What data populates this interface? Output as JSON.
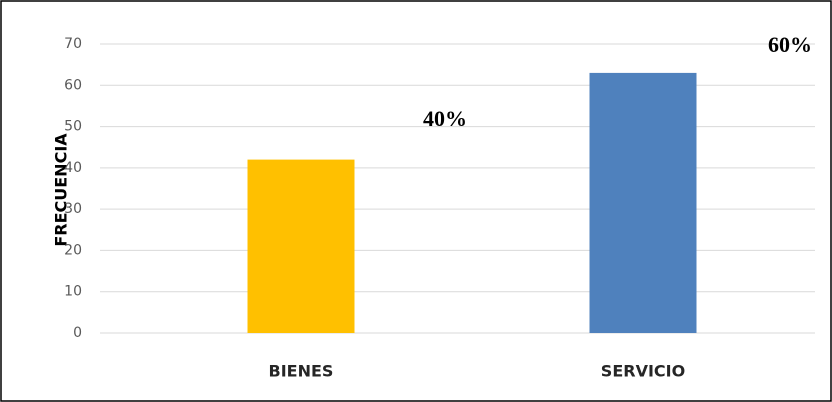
{
  "chart_data": {
    "type": "bar",
    "y_label": "FRECUENCIA",
    "categories": [
      "BIENES",
      "SERVICIO"
    ],
    "values": [
      42,
      63
    ],
    "colors": [
      "#ffc000",
      "#4f81bd"
    ],
    "ylim": [
      0,
      70
    ],
    "yticks": [
      0,
      10,
      20,
      30,
      40,
      50,
      60,
      70
    ],
    "grid": true,
    "annotations": [
      "40%",
      "60%"
    ]
  }
}
